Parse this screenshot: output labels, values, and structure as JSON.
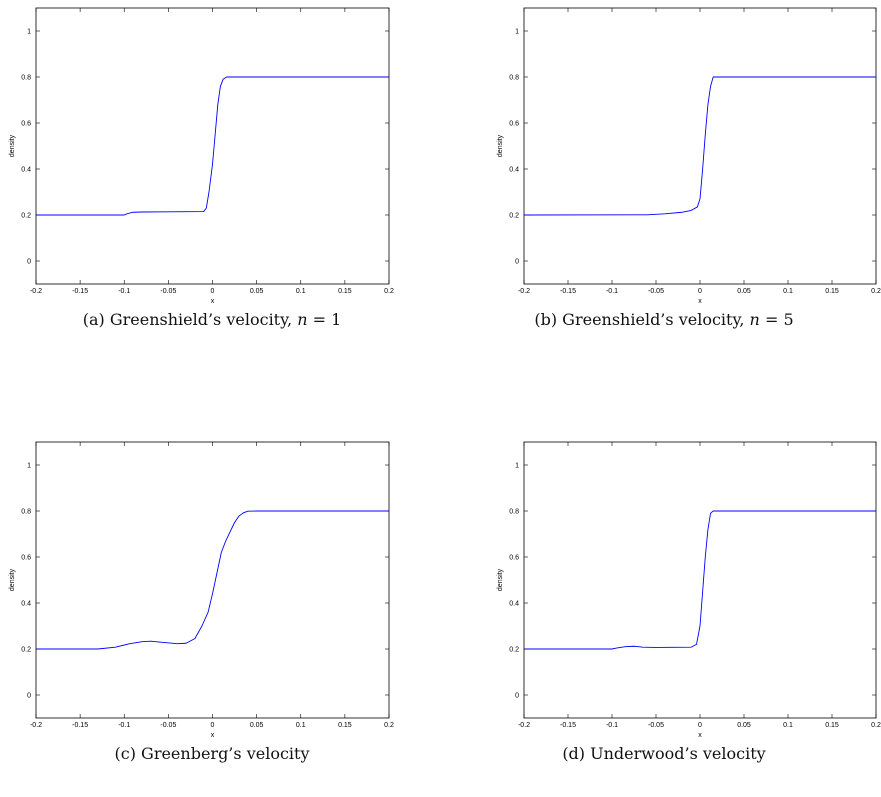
{
  "chart_data": [
    {
      "type": "line",
      "xlabel": "x",
      "ylabel": "density",
      "xlim": [
        -0.2,
        0.2
      ],
      "ylim": [
        -0.1,
        1.1
      ],
      "xticks": [
        "-0.2",
        "-0.15",
        "-0.1",
        "-0.05",
        "0",
        "0.05",
        "0.1",
        "0.15",
        "0.2"
      ],
      "yticks": [
        "0",
        "0.2",
        "0.4",
        "0.6",
        "0.8",
        "1"
      ],
      "series_color": "#0000ff",
      "x": [
        -0.2,
        -0.1,
        -0.097,
        -0.09,
        -0.08,
        -0.05,
        -0.01,
        -0.007,
        -0.004,
        0.0,
        0.003,
        0.006,
        0.009,
        0.012,
        0.016,
        0.02,
        0.2
      ],
      "y": [
        0.2,
        0.2,
        0.205,
        0.212,
        0.213,
        0.214,
        0.215,
        0.23,
        0.3,
        0.42,
        0.55,
        0.68,
        0.76,
        0.79,
        0.8,
        0.8,
        0.8
      ],
      "caption_prefix": "(a) Greenshield’s velocity, ",
      "caption_var": "n",
      "caption_suffix": " = 1"
    },
    {
      "type": "line",
      "xlabel": "x",
      "ylabel": "density",
      "xlim": [
        -0.2,
        0.2
      ],
      "ylim": [
        -0.1,
        1.1
      ],
      "xticks": [
        "-0.2",
        "-0.15",
        "-0.1",
        "-0.05",
        "0",
        "0.05",
        "0.1",
        "0.15",
        "0.2"
      ],
      "yticks": [
        "0",
        "0.2",
        "0.4",
        "0.6",
        "0.8",
        "1"
      ],
      "series_color": "#0000ff",
      "x": [
        -0.2,
        -0.06,
        -0.04,
        -0.02,
        -0.01,
        -0.003,
        0.0,
        0.003,
        0.006,
        0.009,
        0.012,
        0.015,
        0.02,
        0.2
      ],
      "y": [
        0.2,
        0.201,
        0.205,
        0.212,
        0.22,
        0.235,
        0.27,
        0.4,
        0.55,
        0.68,
        0.76,
        0.8,
        0.8,
        0.8
      ],
      "caption_prefix": "(b) Greenshield’s velocity, ",
      "caption_var": "n",
      "caption_suffix": " = 5"
    },
    {
      "type": "line",
      "xlabel": "x",
      "ylabel": "density",
      "xlim": [
        -0.2,
        0.2
      ],
      "ylim": [
        -0.1,
        1.1
      ],
      "xticks": [
        "-0.2",
        "-0.15",
        "-0.1",
        "-0.05",
        "0",
        "0.05",
        "0.1",
        "0.15",
        "0.2"
      ],
      "yticks": [
        "0",
        "0.2",
        "0.4",
        "0.6",
        "0.8",
        "1"
      ],
      "series_color": "#0000ff",
      "x": [
        -0.2,
        -0.13,
        -0.11,
        -0.095,
        -0.08,
        -0.07,
        -0.06,
        -0.04,
        -0.03,
        -0.02,
        -0.012,
        -0.005,
        0.0,
        0.005,
        0.01,
        0.015,
        0.02,
        0.025,
        0.03,
        0.035,
        0.04,
        0.05,
        0.2
      ],
      "y": [
        0.2,
        0.2,
        0.208,
        0.222,
        0.232,
        0.234,
        0.23,
        0.223,
        0.225,
        0.245,
        0.3,
        0.36,
        0.44,
        0.53,
        0.62,
        0.67,
        0.71,
        0.75,
        0.778,
        0.792,
        0.799,
        0.8,
        0.8
      ],
      "caption_prefix": "(c) Greenberg’s velocity",
      "caption_var": "",
      "caption_suffix": ""
    },
    {
      "type": "line",
      "xlabel": "x",
      "ylabel": "density",
      "xlim": [
        -0.2,
        0.2
      ],
      "ylim": [
        -0.1,
        1.1
      ],
      "xticks": [
        "-0.2",
        "-0.15",
        "-0.1",
        "-0.05",
        "0",
        "0.05",
        "0.1",
        "0.15",
        "0.2"
      ],
      "yticks": [
        "0",
        "0.2",
        "0.4",
        "0.6",
        "0.8",
        "1"
      ],
      "series_color": "#0000ff",
      "x": [
        -0.2,
        -0.1,
        -0.095,
        -0.085,
        -0.075,
        -0.065,
        -0.05,
        -0.01,
        -0.004,
        0.0,
        0.003,
        0.006,
        0.009,
        0.012,
        0.015,
        0.2
      ],
      "y": [
        0.2,
        0.2,
        0.204,
        0.21,
        0.212,
        0.208,
        0.207,
        0.208,
        0.22,
        0.3,
        0.45,
        0.6,
        0.72,
        0.79,
        0.8,
        0.8
      ],
      "caption_prefix": "(d) Underwood’s velocity",
      "caption_var": "",
      "caption_suffix": ""
    }
  ]
}
